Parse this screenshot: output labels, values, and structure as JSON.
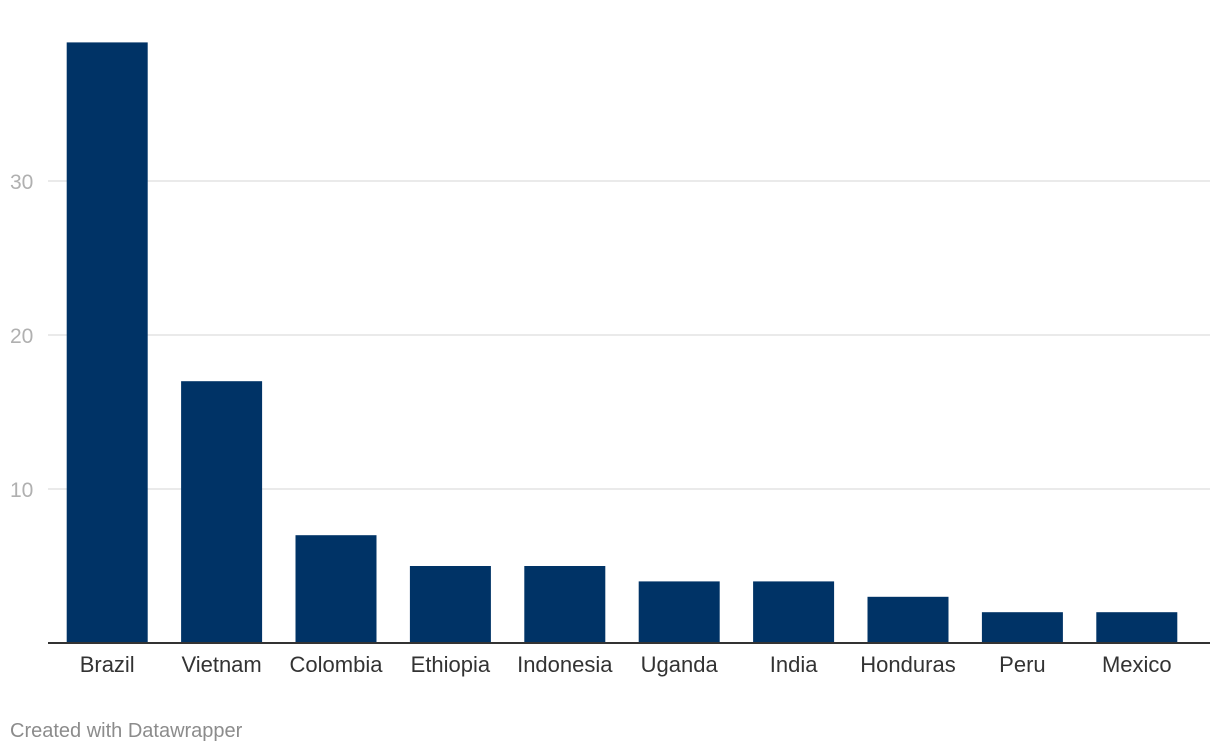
{
  "chart_data": {
    "type": "bar",
    "categories": [
      "Brazil",
      "Vietnam",
      "Colombia",
      "Ethiopia",
      "Indonesia",
      "Uganda",
      "India",
      "Honduras",
      "Peru",
      "Mexico"
    ],
    "values": [
      39,
      17,
      7,
      5,
      5,
      4,
      4,
      3,
      2,
      2
    ],
    "ylim": [
      0,
      40
    ],
    "yticks": [
      10,
      20,
      30
    ],
    "grid": true,
    "bar_color": "#003366",
    "grid_color": "#e4e4e4",
    "axis_color": "#333333",
    "tick_label_color": "#b0b0b0"
  },
  "footer": {
    "credit": "Created with Datawrapper"
  }
}
